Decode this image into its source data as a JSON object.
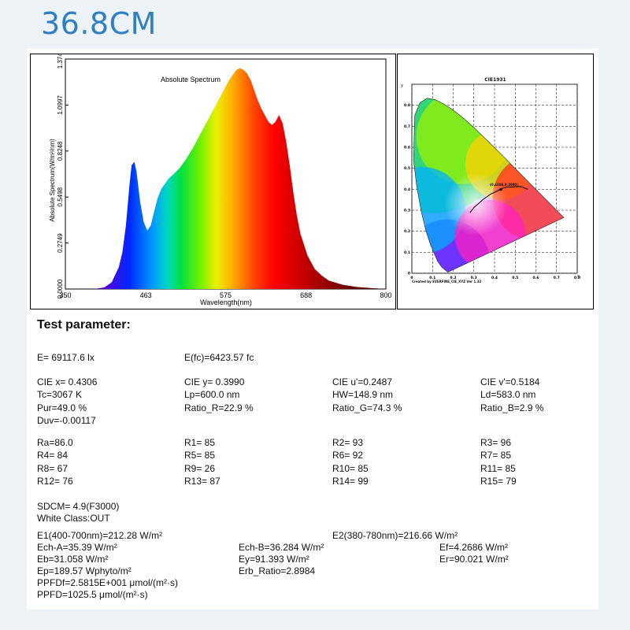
{
  "page": {
    "heading": "36.8CM"
  },
  "chart_data": [
    {
      "type": "area",
      "title": "Absolute Spectrum",
      "xlabel": "Wavelength(nm)",
      "ylabel": "Absolute Spectrum(W/m²/nm)",
      "xlim": [
        350,
        800
      ],
      "ylim": [
        0,
        1.3746
      ],
      "x_ticks": [
        "350",
        "463",
        "575",
        "688",
        "800"
      ],
      "y_ticks": [
        "0.0000",
        "0.2749",
        "0.5498",
        "0.8248",
        "1.0997",
        "1.3746"
      ],
      "grid": false,
      "series": [
        {
          "x": [
            350,
            390,
            405,
            415,
            425,
            430,
            435,
            440,
            443,
            447,
            450,
            455,
            460,
            465,
            470,
            475,
            480,
            485,
            490,
            495,
            500,
            505,
            510,
            520,
            530,
            540,
            550,
            560,
            570,
            580,
            590,
            595,
            600,
            605,
            610,
            615,
            620,
            625,
            630,
            635,
            640,
            645,
            650,
            655,
            660,
            665,
            670,
            675,
            680,
            690,
            700,
            710,
            720,
            740,
            760,
            780,
            800
          ],
          "y": [
            0,
            0,
            0.01,
            0.04,
            0.13,
            0.22,
            0.38,
            0.62,
            0.74,
            0.76,
            0.7,
            0.52,
            0.4,
            0.35,
            0.38,
            0.47,
            0.55,
            0.6,
            0.63,
            0.66,
            0.68,
            0.7,
            0.72,
            0.78,
            0.85,
            0.93,
            1.01,
            1.09,
            1.17,
            1.25,
            1.31,
            1.32,
            1.31,
            1.29,
            1.25,
            1.19,
            1.13,
            1.08,
            1.04,
            1.0,
            0.98,
            1.0,
            1.04,
            0.99,
            0.88,
            0.74,
            0.58,
            0.44,
            0.33,
            0.2,
            0.12,
            0.08,
            0.05,
            0.025,
            0.012,
            0.005,
            0
          ]
        }
      ]
    },
    {
      "type": "scatter",
      "title": "CIE1931",
      "xlabel": "x",
      "ylabel": "y",
      "xlim": [
        0,
        0.8
      ],
      "ylim": [
        0,
        0.9
      ],
      "x_ticks": [
        "0",
        "0.1",
        "0.2",
        "0.3",
        "0.4",
        "0.5",
        "0.6",
        "0.7",
        "0.8"
      ],
      "y_ticks": [
        "0",
        "0.1",
        "0.2",
        "0.3",
        "0.4",
        "0.5",
        "0.6",
        "0.7",
        "0.8"
      ],
      "grid": true,
      "point_label": "(0.4306,0.3990)",
      "credit": "Created by EVERFINE_CIE_XYZ Ver 1.32",
      "series": [
        {
          "x": [
            0.4306
          ],
          "y": [
            0.399
          ]
        }
      ]
    }
  ],
  "params": {
    "title": "Test parameter:",
    "illum": {
      "e": "E=  69117.6 lx",
      "efc": "E(fc)=6423.57 fc"
    },
    "cie": [
      [
        "CIE x= 0.4306",
        "CIE y= 0.3990",
        "CIE u'=0.2487",
        "CIE v'=0.5184"
      ],
      [
        "Tc=3067 K",
        "Lp=600.0 nm",
        "HW=148.9 nm",
        "Ld=583.0 nm"
      ],
      [
        "Pur=49.0 %",
        "Ratio_R=22.9 %",
        "Ratio_G=74.3 %",
        "Ratio_B=2.9 %"
      ],
      [
        "Duv=-0.00117",
        "",
        "",
        ""
      ]
    ],
    "cri": [
      [
        "Ra=86.0",
        "R1= 85",
        "R2= 93",
        "R3= 96"
      ],
      [
        "R4= 84",
        "R5= 85",
        "R6= 92",
        "R7= 85"
      ],
      [
        "R8= 67",
        "R9= 26",
        "R10= 85",
        "R11= 85"
      ],
      [
        "R12= 76",
        "R13= 87",
        "R14= 99",
        "R15= 79"
      ]
    ],
    "sdcm": "SDCM= 4.9(F3000)",
    "white_class": "White Class:OUT",
    "e1": "E1(400-700nm)=212.28 W/m²",
    "e2": "E2(380-780nm)=216.66 W/m²",
    "ech_a": "Ech-A=35.39 W/m²",
    "ech_b": "Ech-B=36.284 W/m²",
    "ef": "Ef=4.2686 W/m²",
    "eb": "Eb=31.058 W/m²",
    "ey": "Ey=91.393 W/m²",
    "er": "Er=90.021 W/m²",
    "ep": "Ep=189.57 Wphyto/m²",
    "erb": "Erb_Ratio=2.8984",
    "ppfdf": "PPFDf=2.5815E+001 μmol/(m²·s)",
    "ppfd": "PPFD=1025.5 μmol/(m²·s)"
  }
}
